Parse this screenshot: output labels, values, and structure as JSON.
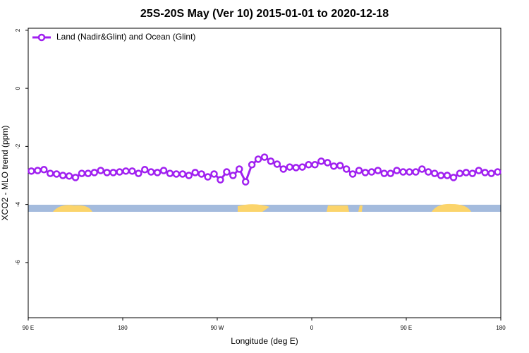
{
  "chart_data": {
    "type": "line",
    "title": "25S-20S May (Ver 10)   2015-01-01 to 2020-12-18",
    "xlabel": "Longitude (deg E)",
    "ylabel": "XCO2 - MLO trend (ppm)",
    "xlim": [
      90,
      540
    ],
    "ylim": [
      -7.9,
      2.07
    ],
    "xticks": [
      {
        "value": 90,
        "label": "90 E"
      },
      {
        "value": 180,
        "label": "180"
      },
      {
        "value": 270,
        "label": "90 W"
      },
      {
        "value": 360,
        "label": "0"
      },
      {
        "value": 450,
        "label": "90 E"
      },
      {
        "value": 540,
        "label": "180"
      }
    ],
    "yticks": [
      2,
      0,
      -2,
      -4,
      -6
    ],
    "legend": "top-left",
    "x": [
      93,
      99,
      105,
      111,
      117,
      123,
      129,
      135,
      141,
      147,
      153,
      159,
      165,
      171,
      177,
      183,
      189,
      195,
      201,
      207,
      213,
      219,
      225,
      231,
      237,
      243,
      249,
      255,
      261,
      267,
      273,
      279,
      285,
      291,
      297,
      303,
      309,
      315,
      321,
      327,
      333,
      339,
      345,
      351,
      357,
      363,
      369,
      375,
      381,
      387,
      393,
      399,
      405,
      411,
      417,
      423,
      429,
      435,
      441,
      447,
      453,
      459,
      465,
      471,
      477,
      483,
      489,
      495,
      501,
      507,
      513,
      519,
      525,
      531,
      537
    ],
    "series": [
      {
        "name": "Land (Nadir&Glint) and Ocean (Glint)",
        "color": "#a020f0",
        "values": [
          -2.85,
          -2.83,
          -2.8,
          -2.93,
          -2.95,
          -3.0,
          -3.02,
          -3.07,
          -2.93,
          -2.93,
          -2.9,
          -2.83,
          -2.9,
          -2.9,
          -2.88,
          -2.85,
          -2.85,
          -2.93,
          -2.8,
          -2.88,
          -2.9,
          -2.83,
          -2.93,
          -2.95,
          -2.95,
          -3.0,
          -2.9,
          -2.95,
          -3.05,
          -2.95,
          -3.15,
          -2.88,
          -3.0,
          -2.78,
          -3.22,
          -2.63,
          -2.44,
          -2.37,
          -2.51,
          -2.61,
          -2.78,
          -2.71,
          -2.73,
          -2.71,
          -2.63,
          -2.63,
          -2.51,
          -2.56,
          -2.68,
          -2.66,
          -2.78,
          -2.95,
          -2.83,
          -2.9,
          -2.88,
          -2.83,
          -2.93,
          -2.93,
          -2.83,
          -2.88,
          -2.88,
          -2.88,
          -2.78,
          -2.88,
          -2.93,
          -3.0,
          -3.0,
          -3.07,
          -2.93,
          -2.9,
          -2.93,
          -2.83,
          -2.9,
          -2.93,
          -2.88
        ]
      }
    ]
  }
}
